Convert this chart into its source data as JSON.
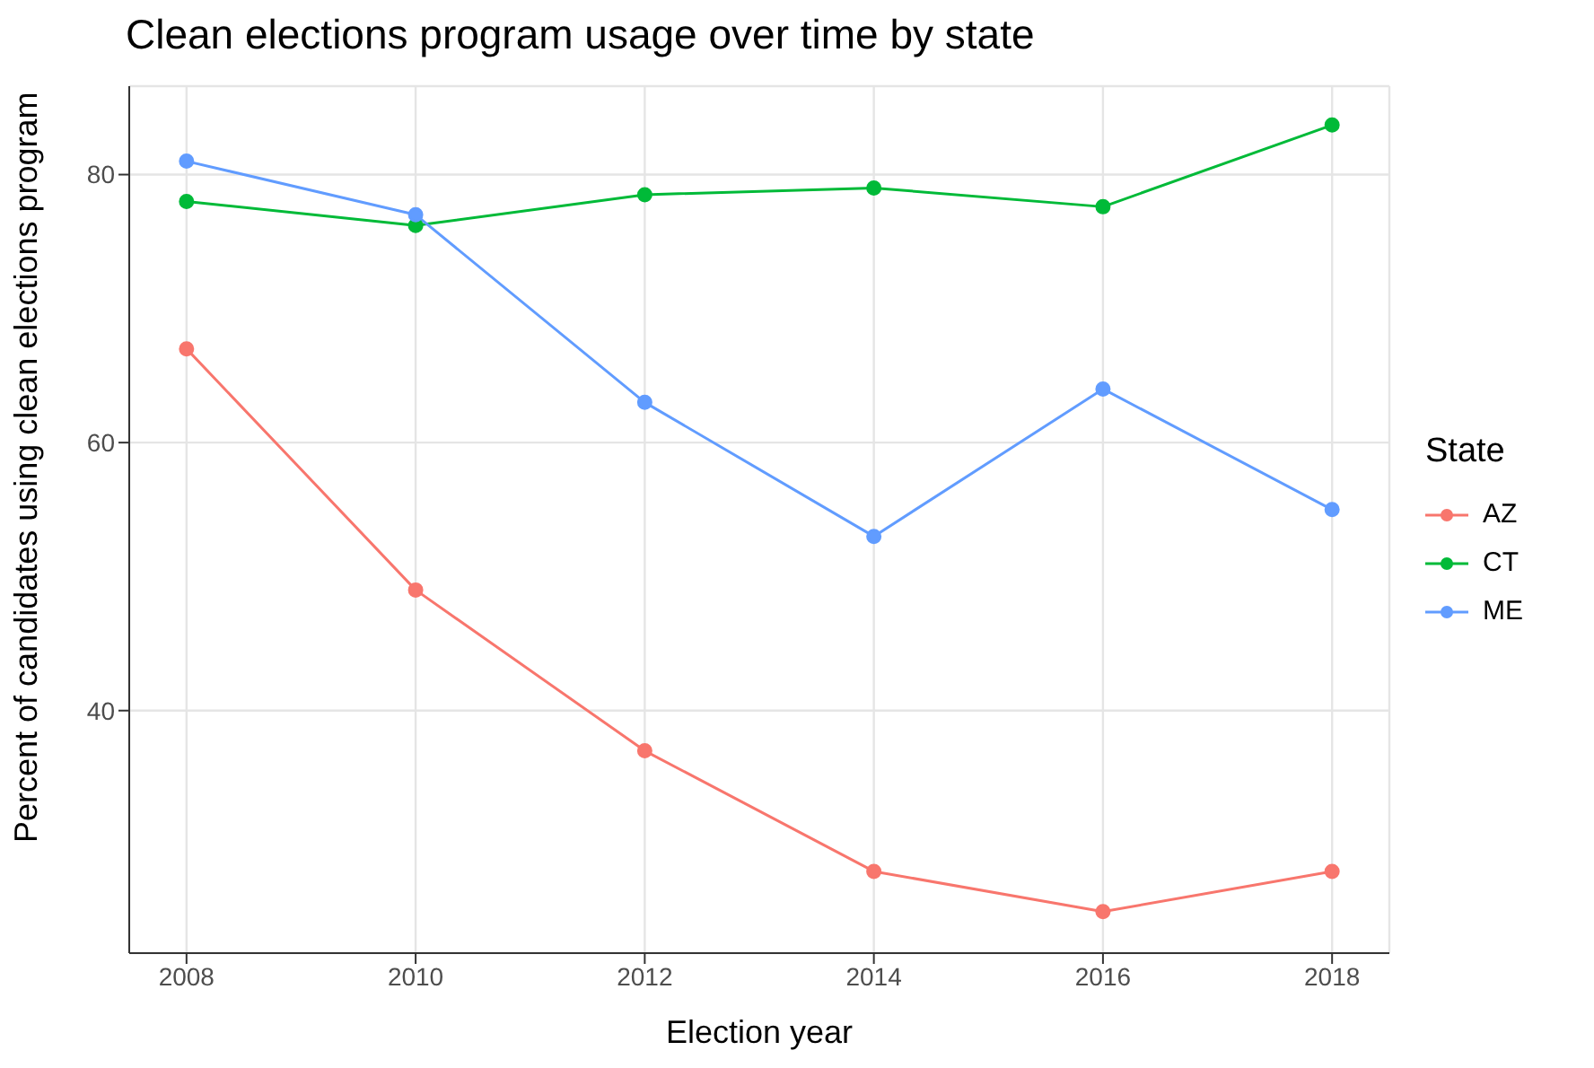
{
  "chart_data": {
    "type": "line",
    "title": "Clean elections program usage over time by state",
    "xlabel": "Election year",
    "ylabel": "Percent of candidates using clean elections program",
    "legend_title": "State",
    "x": [
      2008,
      2010,
      2012,
      2014,
      2016,
      2018
    ],
    "series": [
      {
        "name": "AZ",
        "color": "#f8766d",
        "values": [
          67,
          49,
          37,
          28,
          25,
          28
        ]
      },
      {
        "name": "CT",
        "color": "#00ba38",
        "values": [
          78,
          76.2,
          78.5,
          79,
          77.6,
          83.7
        ]
      },
      {
        "name": "ME",
        "color": "#619cff",
        "values": [
          81,
          77,
          63,
          53,
          64,
          55
        ]
      }
    ],
    "xlim": [
      2007.5,
      2018.5
    ],
    "xticks": [
      2008,
      2010,
      2012,
      2014,
      2016,
      2018
    ],
    "ylim": [
      21.9,
      86.6
    ],
    "yticks": [
      40,
      60,
      80
    ],
    "grid": true,
    "legend": "right",
    "marker": "circle",
    "line_style": "solid"
  }
}
